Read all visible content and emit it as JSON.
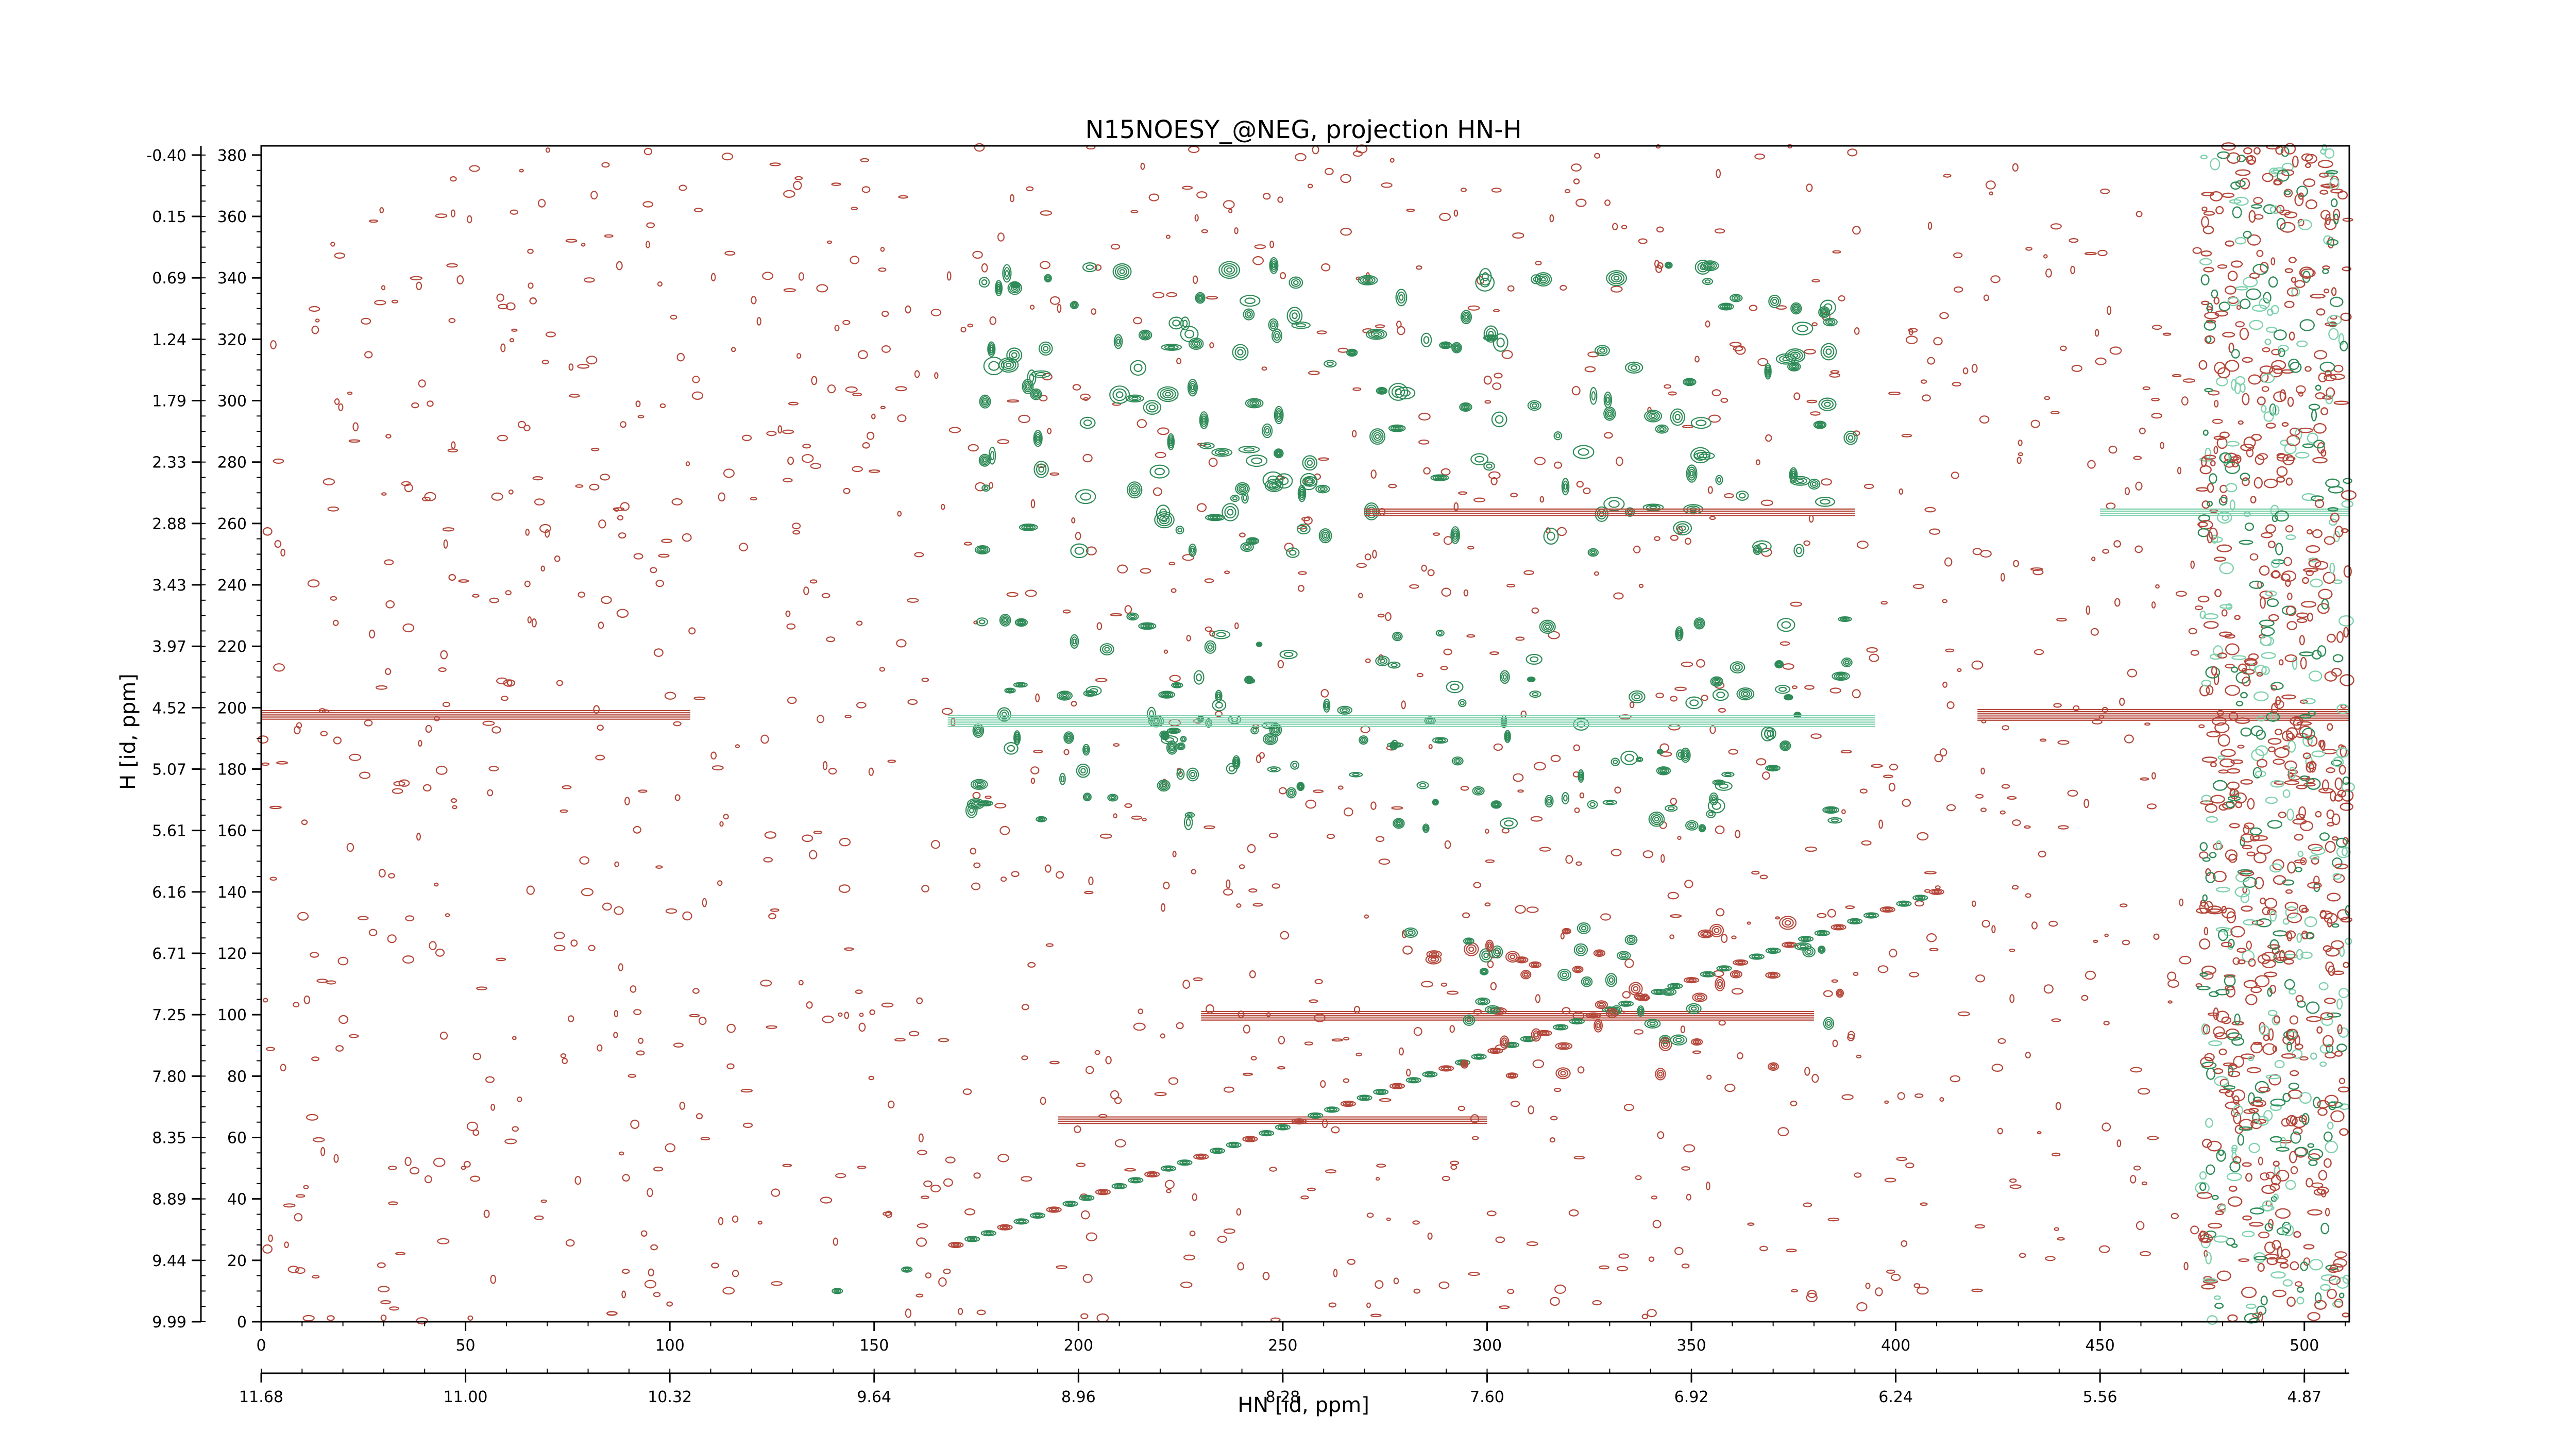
{
  "chart_data": {
    "type": "contour",
    "title": "N15NOESY_@NEG, projection HN-H",
    "xlabel": "HN [id, ppm]",
    "ylabel": "H [id, ppm]",
    "x_index_ticks": [
      "0",
      "50",
      "100",
      "150",
      "200",
      "250",
      "300",
      "350",
      "400",
      "450",
      "500"
    ],
    "x_ppm_ticks": [
      "11.68",
      "11.00",
      "10.32",
      "9.64",
      "8.96",
      "8.28",
      "7.60",
      "6.92",
      "6.24",
      "5.56",
      "4.87"
    ],
    "y_index_ticks": [
      "0",
      "20",
      "40",
      "60",
      "80",
      "100",
      "120",
      "140",
      "160",
      "180",
      "200",
      "220",
      "240",
      "260",
      "280",
      "300",
      "320",
      "340",
      "360",
      "380"
    ],
    "y_ppm_ticks": [
      "9.99",
      "9.44",
      "8.89",
      "8.35",
      "7.80",
      "7.25",
      "6.71",
      "6.16",
      "5.61",
      "5.07",
      "4.52",
      "3.97",
      "3.43",
      "2.88",
      "2.33",
      "1.79",
      "1.24",
      "0.69",
      "0.15",
      "-0.40"
    ],
    "x_range_index": [
      0,
      511
    ],
    "y_range_index": [
      0,
      383
    ],
    "colors": {
      "positive": "#2e8b57",
      "negative": "#b5473a",
      "light_positive": "#7fd1ad"
    },
    "features": {
      "diagonal_band": {
        "from": [
          170,
          25
        ],
        "to": [
          410,
          140
        ]
      },
      "horizontal_ridges_y": [
        198,
        100,
        66,
        264
      ],
      "noise_column_x": [
        475,
        511
      ]
    }
  }
}
